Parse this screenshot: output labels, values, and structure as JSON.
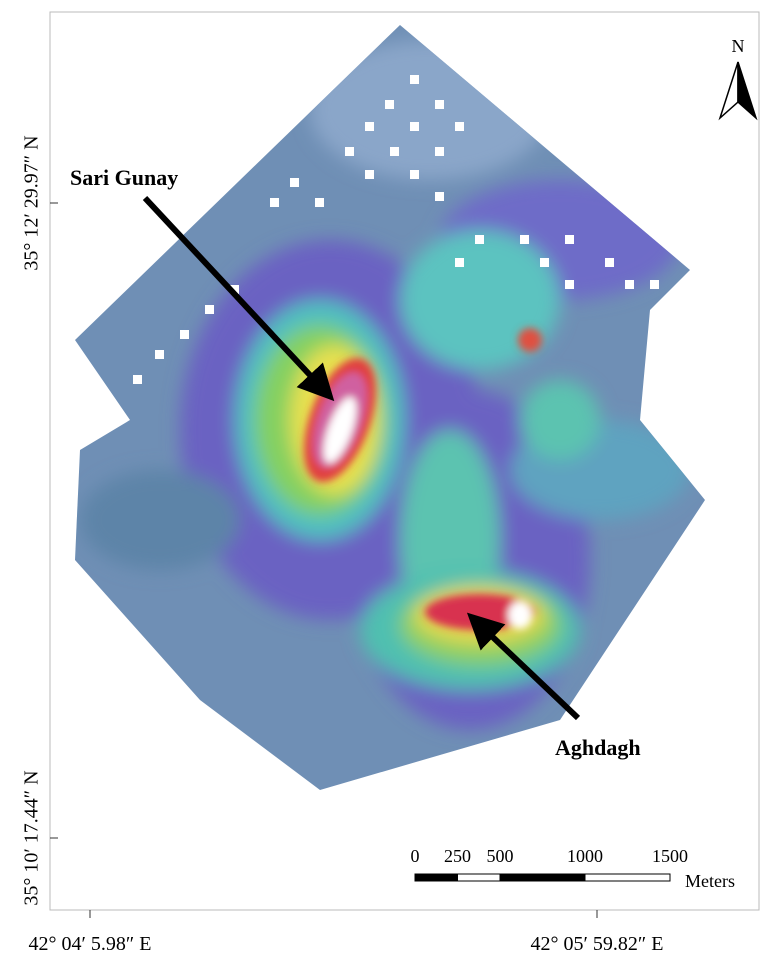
{
  "map": {
    "north_arrow": "N",
    "labels": [
      {
        "text": "Sari Gunay"
      },
      {
        "text": "Aghdagh"
      }
    ],
    "y_axis_labels": [
      "35° 12′ 29.97″ N",
      "35° 10′ 17.44″ N"
    ],
    "x_axis_labels": [
      "42° 04′ 5.98″ E",
      "42° 05′ 59.82″ E"
    ],
    "scale_bar": {
      "ticks": [
        0,
        250,
        500,
        1000,
        1500
      ],
      "unit": "Meters"
    }
  }
}
